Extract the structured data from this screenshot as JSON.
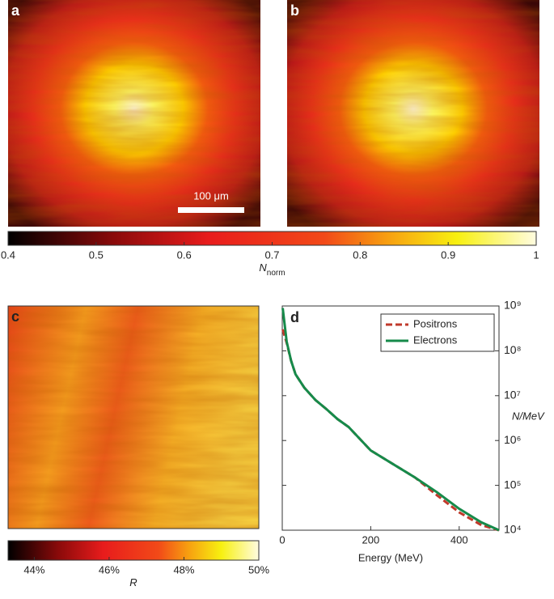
{
  "chart_data": [
    {
      "type": "heatmap",
      "panel_label": "a",
      "scale_bar": "100 μm"
    },
    {
      "type": "heatmap",
      "panel_label": "b"
    },
    {
      "type": "colorbar",
      "xlim": [
        0.4,
        1
      ],
      "xticks": [
        0.4,
        0.5,
        0.6,
        0.7,
        0.8,
        0.9,
        1
      ],
      "label": "N",
      "label_sub": "norm"
    },
    {
      "type": "heatmap",
      "panel_label": "c"
    },
    {
      "type": "colorbar",
      "xlim": [
        43.3,
        50
      ],
      "xticks": [
        {
          "value": 44,
          "label": "44%"
        },
        {
          "value": 46,
          "label": "46%"
        },
        {
          "value": 48,
          "label": "48%"
        },
        {
          "value": 50,
          "label": "50%"
        }
      ],
      "label": "R"
    },
    {
      "type": "line",
      "panel_label": "d",
      "xlabel": "Energy (MeV)",
      "ylabel": "N/MeV",
      "log_y": true,
      "legend": "top-right",
      "xlim": [
        0,
        490
      ],
      "xticks": [
        0,
        200,
        400
      ],
      "ylim": [
        10000,
        1000000000
      ],
      "yticks": [
        {
          "value": 10000,
          "label": "10⁴"
        },
        {
          "value": 100000,
          "label": "10⁵"
        },
        {
          "value": 1000000,
          "label": "10⁶"
        },
        {
          "value": 10000000,
          "label": "10⁷"
        },
        {
          "value": 100000000,
          "label": "10⁸"
        },
        {
          "value": 1000000000,
          "label": "10⁹"
        }
      ],
      "x": [
        1,
        10,
        20,
        30,
        50,
        75,
        100,
        125,
        150,
        200,
        250,
        300,
        350,
        400,
        450,
        490
      ],
      "series": [
        {
          "name": "Positrons",
          "color": "#c0392b",
          "dashed": true,
          "values": [
            300000000,
            150000000,
            60000000,
            30000000,
            15000000,
            8000000,
            5000000,
            3000000,
            2000000,
            600000,
            300000,
            150000,
            60000,
            25000,
            13000,
            10000
          ]
        },
        {
          "name": "Electrons",
          "color": "#168a4a",
          "dashed": false,
          "values": [
            900000000,
            160000000,
            60000000,
            30000000,
            15000000,
            8000000,
            5000000,
            3000000,
            2000000,
            600000,
            300000,
            150000,
            70000,
            30000,
            15000,
            10000
          ]
        }
      ]
    }
  ]
}
